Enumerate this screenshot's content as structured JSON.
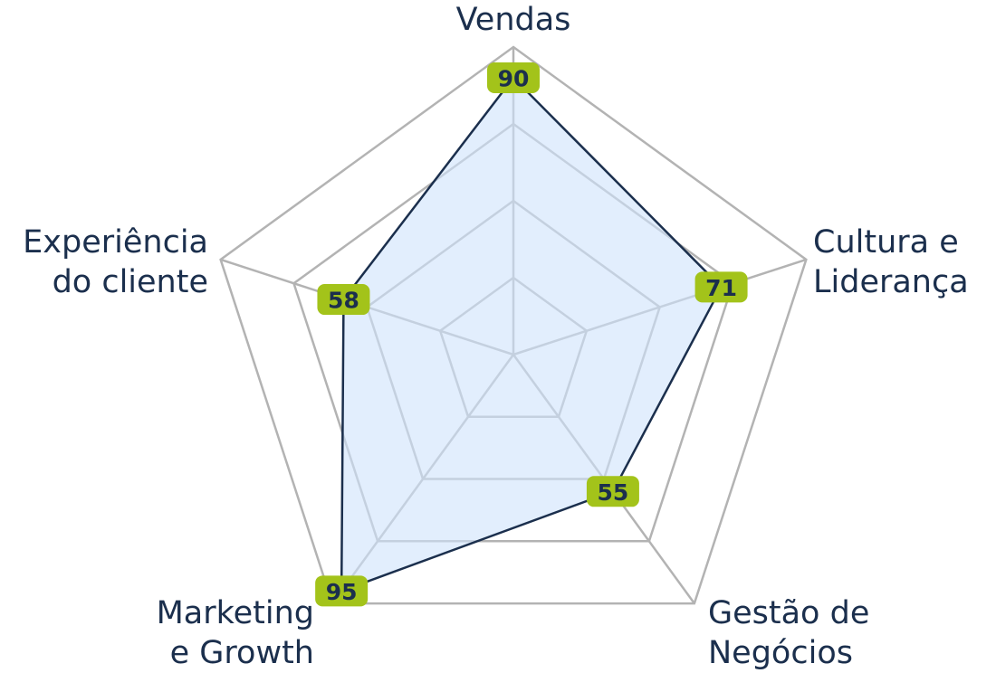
{
  "chart_data": {
    "type": "radar",
    "categories": [
      "Vendas",
      "Cultura e\nLiderança",
      "Gestão de\nNegócios",
      "Marketing\ne Growth",
      "Experiência\ndo cliente"
    ],
    "series": [
      {
        "color": "#1b2f4d",
        "values": [
          90,
          71,
          55,
          95,
          58
        ]
      }
    ],
    "ylim": [
      0,
      100
    ],
    "yticks": [
      25,
      50,
      75,
      100
    ],
    "grid": true
  }
}
